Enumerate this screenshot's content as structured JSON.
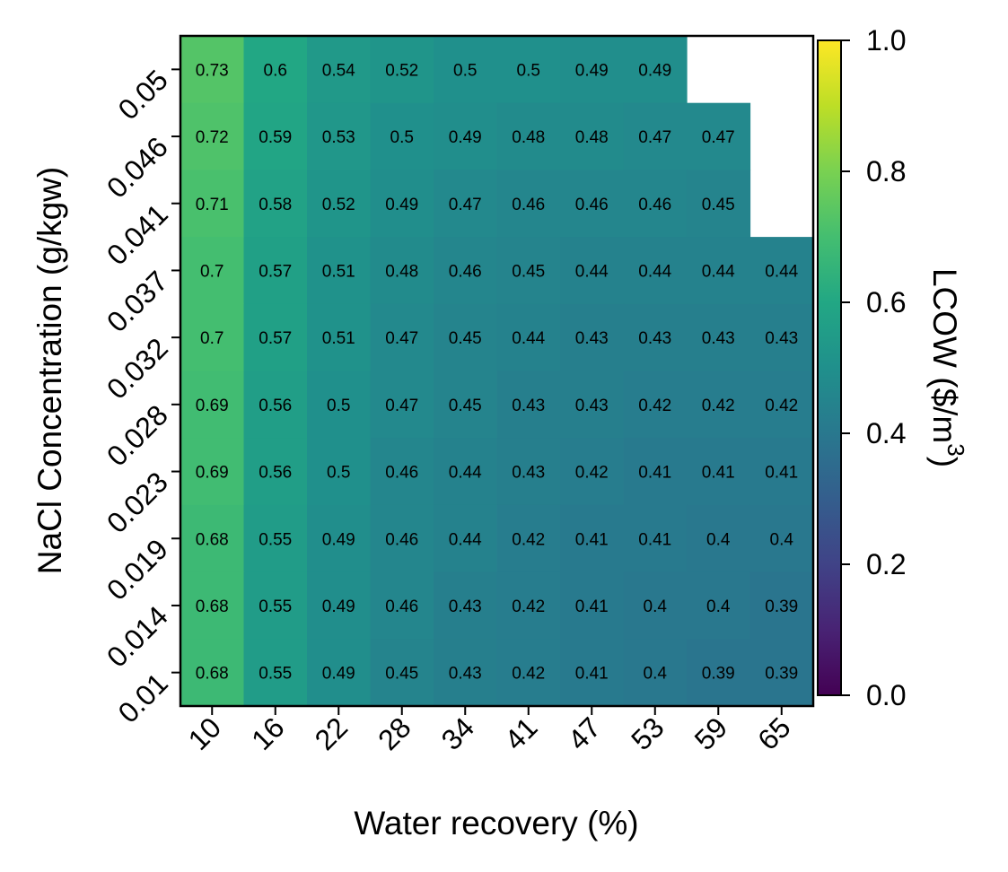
{
  "chart_data": {
    "type": "heatmap",
    "title": "",
    "xlabel": "Water recovery (%)",
    "ylabel": "NaCl Concentration (g/kgw)",
    "x_categories": [
      "10",
      "16",
      "22",
      "28",
      "34",
      "41",
      "47",
      "53",
      "59",
      "65"
    ],
    "y_categories": [
      "0.05",
      "0.046",
      "0.041",
      "0.037",
      "0.032",
      "0.028",
      "0.023",
      "0.019",
      "0.014",
      "0.01"
    ],
    "values": [
      [
        0.73,
        0.6,
        0.54,
        0.52,
        0.5,
        0.5,
        0.49,
        0.49,
        null,
        null
      ],
      [
        0.72,
        0.59,
        0.53,
        0.5,
        0.49,
        0.48,
        0.48,
        0.47,
        0.47,
        null
      ],
      [
        0.71,
        0.58,
        0.52,
        0.49,
        0.47,
        0.46,
        0.46,
        0.46,
        0.45,
        null
      ],
      [
        0.7,
        0.57,
        0.51,
        0.48,
        0.46,
        0.45,
        0.44,
        0.44,
        0.44,
        0.44
      ],
      [
        0.7,
        0.57,
        0.51,
        0.47,
        0.45,
        0.44,
        0.43,
        0.43,
        0.43,
        0.43
      ],
      [
        0.69,
        0.56,
        0.5,
        0.47,
        0.45,
        0.43,
        0.43,
        0.42,
        0.42,
        0.42
      ],
      [
        0.69,
        0.56,
        0.5,
        0.46,
        0.44,
        0.43,
        0.42,
        0.41,
        0.41,
        0.41
      ],
      [
        0.68,
        0.55,
        0.49,
        0.46,
        0.44,
        0.42,
        0.41,
        0.41,
        0.4,
        0.4
      ],
      [
        0.68,
        0.55,
        0.49,
        0.46,
        0.43,
        0.42,
        0.41,
        0.4,
        0.4,
        0.39
      ],
      [
        0.68,
        0.55,
        0.49,
        0.45,
        0.43,
        0.42,
        0.41,
        0.4,
        0.39,
        0.39
      ]
    ],
    "colormap": "viridis",
    "clim": [
      0,
      1
    ],
    "colorbar": {
      "label": "LCOW ($/m",
      "label_superscript": "3",
      "label_close": ")",
      "ticks": [
        "0.0",
        "0.2",
        "0.4",
        "0.6",
        "0.8",
        "1.0"
      ]
    },
    "grid": false,
    "legend": "none"
  }
}
